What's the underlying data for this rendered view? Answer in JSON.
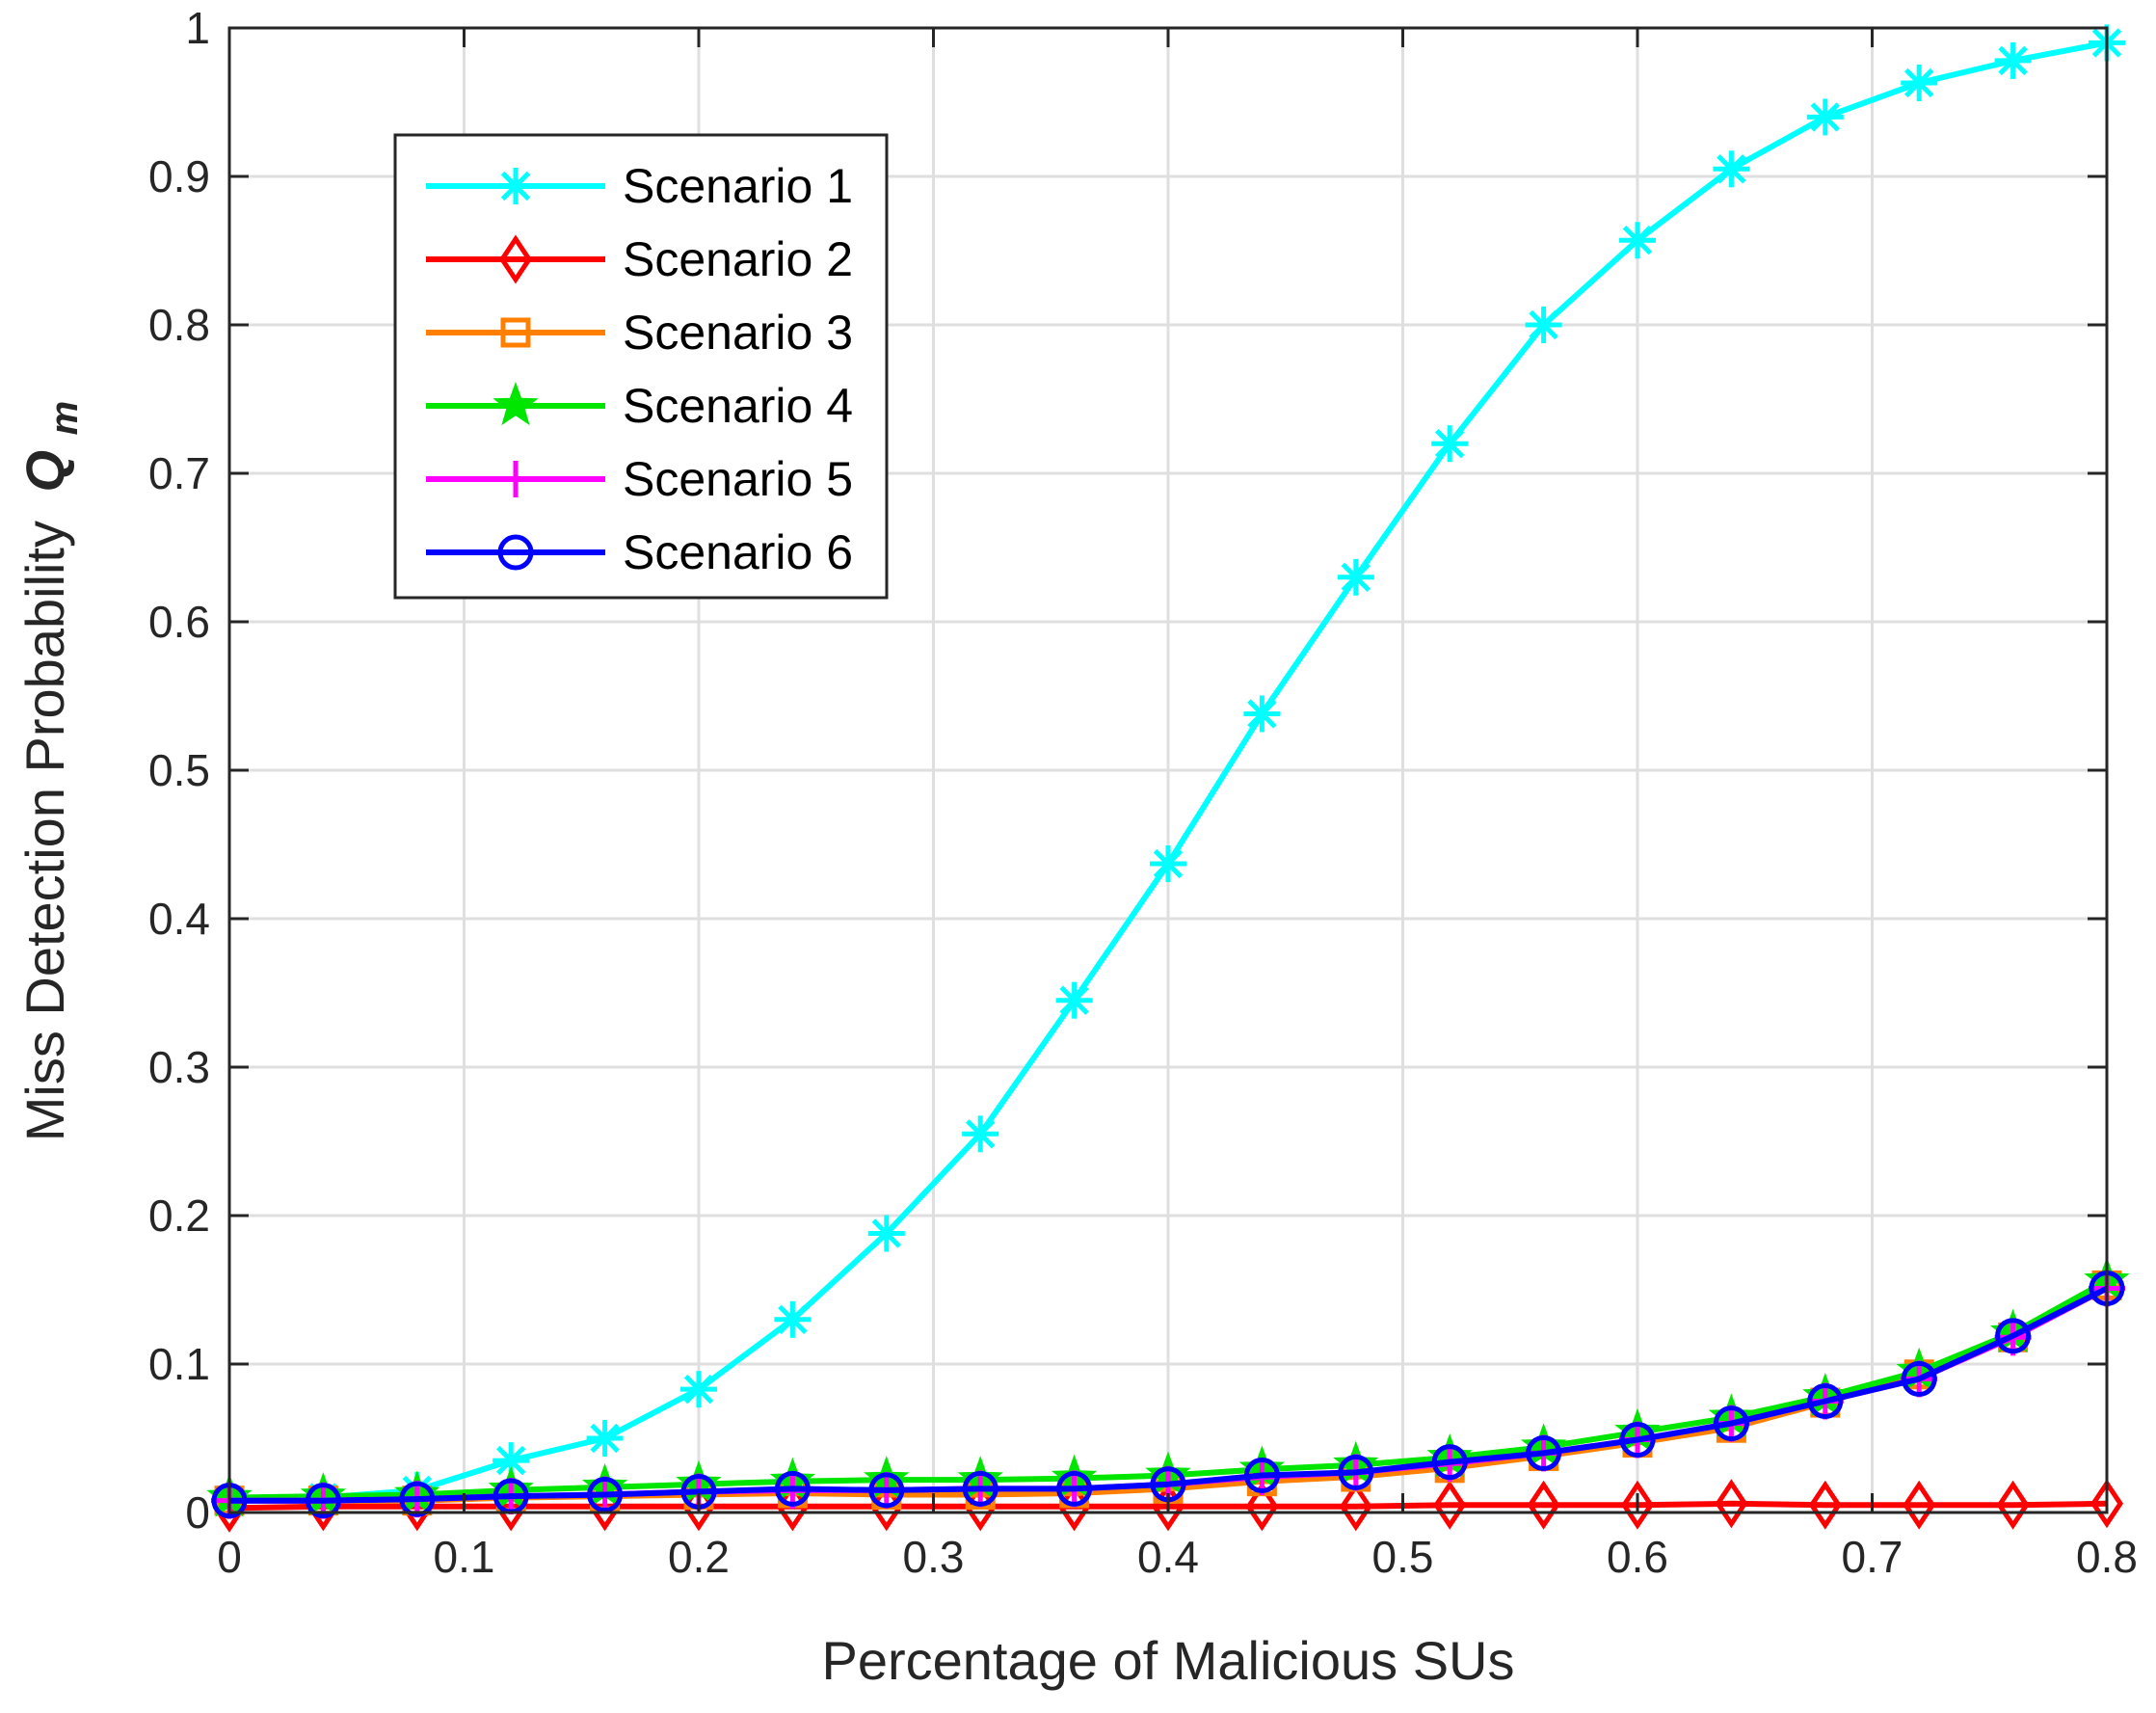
{
  "chart_data": {
    "type": "line",
    "title": "",
    "xlabel": "Percentage of Malicious SUs",
    "ylabel": "Miss Detection Probability",
    "ylabel_symbol": "Q",
    "ylabel_subscript": "m",
    "xlim": [
      0,
      0.8
    ],
    "ylim": [
      0,
      1
    ],
    "grid": true,
    "legend_position": "top-left",
    "x_ticks": [
      "0",
      "0.1",
      "0.2",
      "0.3",
      "0.4",
      "0.5",
      "0.6",
      "0.7",
      "0.8"
    ],
    "y_ticks": [
      "0",
      "0.1",
      "0.2",
      "0.3",
      "0.4",
      "0.5",
      "0.6",
      "0.7",
      "0.8",
      "0.9",
      "1"
    ],
    "x": [
      0,
      0.04,
      0.08,
      0.12,
      0.16,
      0.2,
      0.24,
      0.28,
      0.32,
      0.36,
      0.4,
      0.44,
      0.48,
      0.52,
      0.56,
      0.6,
      0.64,
      0.68,
      0.72,
      0.76,
      0.8
    ],
    "series": [
      {
        "name": "Scenario 1",
        "color": "#00FFFF",
        "marker": "asterisk",
        "values": [
          0.008,
          0.01,
          0.015,
          0.035,
          0.05,
          0.083,
          0.13,
          0.188,
          0.255,
          0.345,
          0.437,
          0.538,
          0.63,
          0.72,
          0.8,
          0.857,
          0.905,
          0.94,
          0.963,
          0.978,
          0.99
        ]
      },
      {
        "name": "Scenario 2",
        "color": "#FF0000",
        "marker": "diamond",
        "values": [
          0.003,
          0.004,
          0.004,
          0.004,
          0.004,
          0.004,
          0.004,
          0.004,
          0.004,
          0.004,
          0.004,
          0.004,
          0.004,
          0.005,
          0.005,
          0.005,
          0.006,
          0.005,
          0.005,
          0.005,
          0.006
        ]
      },
      {
        "name": "Scenario 3",
        "color": "#FF7F00",
        "marker": "square",
        "values": [
          0.008,
          0.008,
          0.008,
          0.01,
          0.011,
          0.012,
          0.013,
          0.012,
          0.012,
          0.013,
          0.016,
          0.021,
          0.024,
          0.03,
          0.038,
          0.047,
          0.057,
          0.074,
          0.093,
          0.118,
          0.153
        ]
      },
      {
        "name": "Scenario 4",
        "color": "#00E600",
        "marker": "pentagram",
        "values": [
          0.01,
          0.011,
          0.012,
          0.015,
          0.017,
          0.019,
          0.021,
          0.022,
          0.022,
          0.023,
          0.025,
          0.029,
          0.032,
          0.037,
          0.044,
          0.054,
          0.064,
          0.078,
          0.095,
          0.121,
          0.156
        ]
      },
      {
        "name": "Scenario 5",
        "color": "#FF00FF",
        "marker": "plus",
        "values": [
          0.008,
          0.008,
          0.009,
          0.011,
          0.012,
          0.014,
          0.015,
          0.015,
          0.016,
          0.016,
          0.019,
          0.024,
          0.027,
          0.033,
          0.04,
          0.049,
          0.06,
          0.075,
          0.09,
          0.118,
          0.151
        ]
      },
      {
        "name": "Scenario 6",
        "color": "#0000FF",
        "marker": "circle",
        "values": [
          0.008,
          0.008,
          0.009,
          0.011,
          0.012,
          0.014,
          0.016,
          0.015,
          0.016,
          0.016,
          0.019,
          0.025,
          0.027,
          0.034,
          0.04,
          0.049,
          0.06,
          0.075,
          0.09,
          0.119,
          0.151
        ]
      }
    ]
  }
}
